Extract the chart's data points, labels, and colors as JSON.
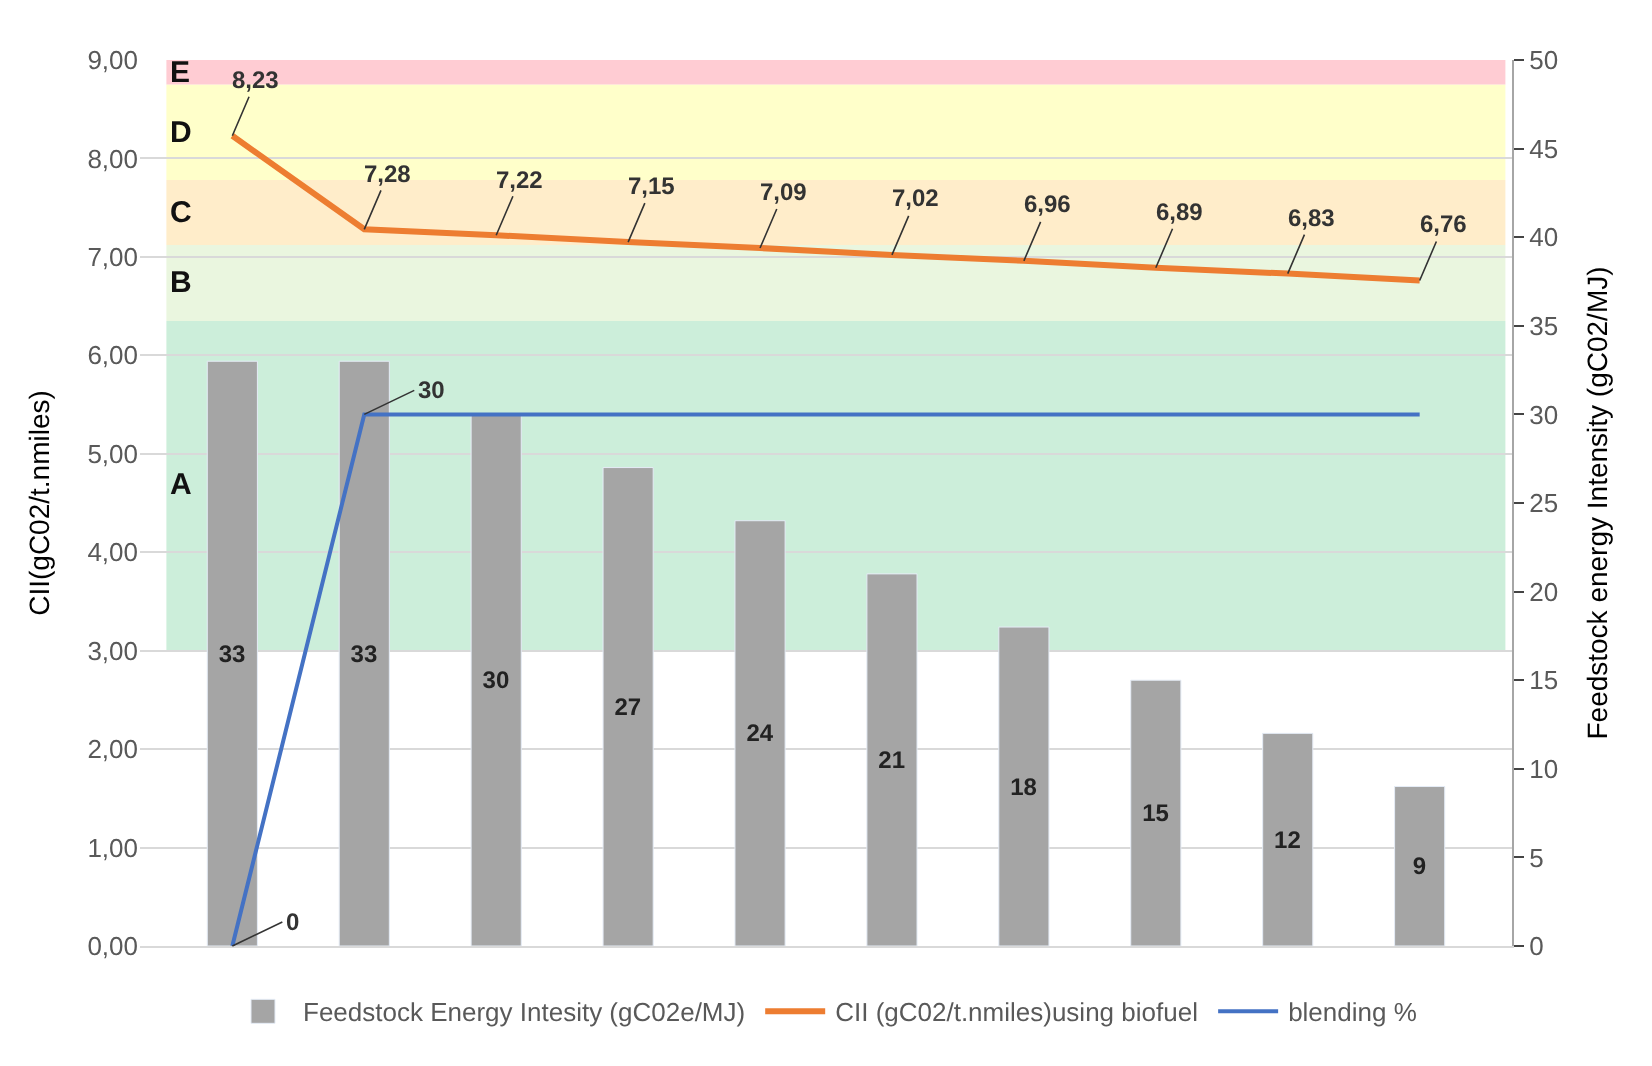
{
  "chart_data": {
    "type": "bar",
    "ylabel": "CII(gC02/t.nmiles)",
    "y2label": "Feedstock energy Intensity (gC02/MJ)",
    "categories": [
      null,
      null,
      null,
      null,
      null,
      null,
      null,
      null,
      null,
      null
    ],
    "series": [
      {
        "name": "Feedstock Energy Intesity (gC02e/MJ)",
        "axis": "y2",
        "color": "#a5a5a5",
        "values": [
          33,
          33,
          30,
          27,
          24,
          21,
          18,
          15,
          12,
          9
        ],
        "value_labels": [
          "33",
          "33",
          "30",
          "27",
          "24",
          "21",
          "18",
          "15",
          "12",
          "9"
        ]
      },
      {
        "name": "CII (gC02/t.nmiles)using biofuel",
        "type": "line",
        "color": "#ed7d31",
        "values": [
          8.23,
          7.28,
          7.22,
          7.15,
          7.09,
          7.02,
          6.96,
          6.89,
          6.83,
          6.76
        ],
        "value_labels": [
          "8,23",
          "7,28",
          "7,22",
          "7,15",
          "7,09",
          "7,02",
          "6,96",
          "6,89",
          "6,83",
          "6,76"
        ]
      },
      {
        "name": "blending %",
        "type": "line",
        "axis": "y2",
        "color": "#4472c4",
        "values": [
          0,
          30,
          30,
          30,
          30,
          30,
          30,
          30,
          30,
          30
        ],
        "value_labels": [
          "0",
          "30",
          null,
          null,
          null,
          null,
          null,
          null,
          null,
          null
        ]
      }
    ],
    "ylim": [
      0,
      9
    ],
    "yticks": [
      {
        "value": 0,
        "label": "0,00"
      },
      {
        "value": 1,
        "label": "1,00"
      },
      {
        "value": 2,
        "label": "2,00"
      },
      {
        "value": 3,
        "label": "3,00"
      },
      {
        "value": 4,
        "label": "4,00"
      },
      {
        "value": 5,
        "label": "5,00"
      },
      {
        "value": 6,
        "label": "6,00"
      },
      {
        "value": 7,
        "label": "7,00"
      },
      {
        "value": 8,
        "label": "8,00"
      },
      {
        "value": 9,
        "label": "9,00"
      }
    ],
    "y2lim": [
      0,
      50
    ],
    "y2ticks": [
      0,
      5,
      10,
      15,
      20,
      25,
      30,
      35,
      40,
      45,
      50
    ],
    "bands": [
      {
        "axis": "y",
        "from": 3.0,
        "to": 6.35,
        "label": "A",
        "color": "#c6ecd6"
      },
      {
        "axis": "y",
        "from": 6.35,
        "to": 7.12,
        "label": "B",
        "color": "#e8f5dc"
      },
      {
        "axis": "y",
        "from": 7.12,
        "to": 7.78,
        "label": "C",
        "color": "#ffebc4"
      },
      {
        "axis": "y",
        "from": 7.78,
        "to": 8.75,
        "label": "D",
        "color": "#ffffc4"
      },
      {
        "axis": "y",
        "from": 8.75,
        "to": 9.0,
        "label": "E",
        "color": "#ffc7ce"
      }
    ],
    "grid": true,
    "legend": "bottom",
    "marker": "none",
    "line_style": "solid"
  }
}
